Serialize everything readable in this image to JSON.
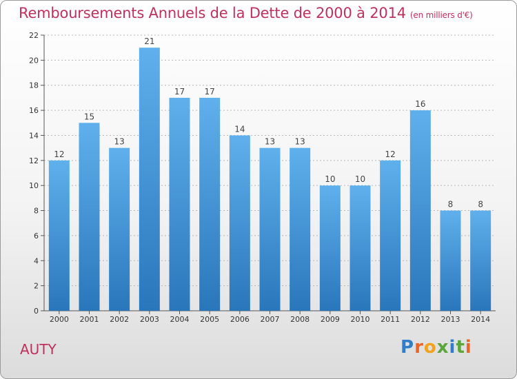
{
  "title": "Remboursements Annuels de la Dette de 2000 à 2014",
  "unit": "(en milliers d'€)",
  "place": "AUTY",
  "logo": {
    "letters": [
      "P",
      "r",
      "o",
      "x",
      "i",
      "t",
      "i"
    ],
    "colors": [
      "#2f7fc8",
      "#e8662a",
      "#f2a31b",
      "#5aa63a",
      "#2f7fc8",
      "#5aa63a",
      "#e8662a"
    ]
  },
  "colors": {
    "bar_top": "#5fb0ec",
    "bar_bottom": "#2a76bb",
    "title": "#c0305e",
    "grid": "#b8b8b8"
  },
  "chart_data": {
    "type": "bar",
    "categories": [
      "2000",
      "2001",
      "2002",
      "2003",
      "2004",
      "2005",
      "2006",
      "2007",
      "2008",
      "2009",
      "2010",
      "2011",
      "2012",
      "2013",
      "2014"
    ],
    "values": [
      12,
      15,
      13,
      21,
      17,
      17,
      14,
      13,
      13,
      10,
      10,
      12,
      16,
      8,
      8
    ],
    "title": "Remboursements Annuels de la Dette de 2000 à 2014",
    "xlabel": "",
    "ylabel": "",
    "ylim": [
      0,
      22
    ],
    "yticks": [
      0,
      2,
      4,
      6,
      8,
      10,
      12,
      14,
      16,
      18,
      20,
      22
    ],
    "grid": true,
    "data_labels": true
  }
}
